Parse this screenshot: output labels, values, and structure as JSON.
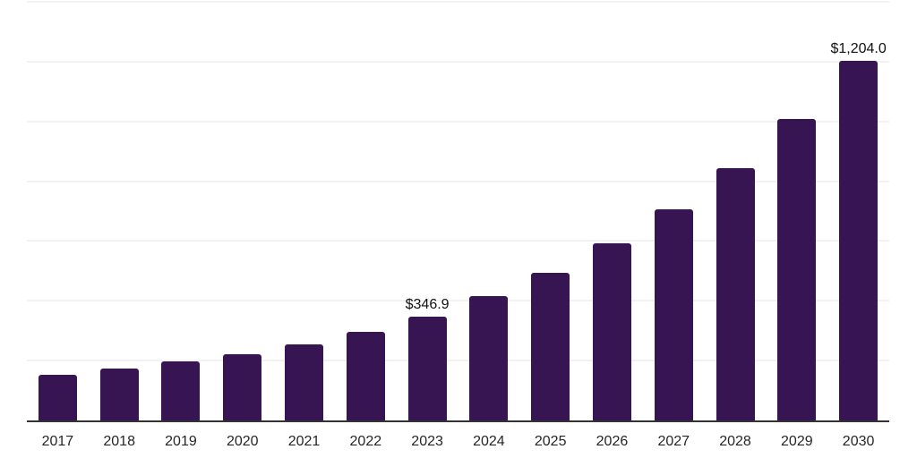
{
  "chart_data": {
    "type": "bar",
    "title": "",
    "xlabel": "",
    "ylabel": "",
    "categories": [
      "2017",
      "2018",
      "2019",
      "2020",
      "2021",
      "2022",
      "2023",
      "2024",
      "2025",
      "2026",
      "2027",
      "2028",
      "2029",
      "2030"
    ],
    "values": [
      153,
      173,
      196,
      221,
      255,
      295,
      346.9,
      414.4,
      495.0,
      591.3,
      706.4,
      843.8,
      1007.9,
      1204.0
    ],
    "data_labels": [
      {
        "category": "2023",
        "text": "$346.9"
      },
      {
        "category": "2030",
        "text": "$1,204.0"
      }
    ],
    "ylim": [
      0,
      1400
    ],
    "gridline_interval": 200,
    "grid": "horizontal",
    "legend_position": "none",
    "y_axis_ticks_visible": false,
    "colors": {
      "bar": "#371452",
      "gridline": "#f2f2f2",
      "axis_line": "#333333",
      "data_label_text": "#111111",
      "tick_label_text": "#262626",
      "background": "#ffffff"
    }
  }
}
